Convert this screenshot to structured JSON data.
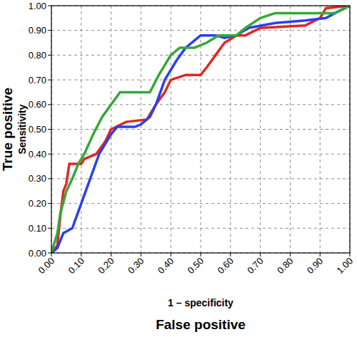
{
  "chart_data": {
    "type": "line",
    "xlabel": "1 – specificity",
    "ylabel": "Sensitivity",
    "annotations": [
      {
        "text": "True positive"
      },
      {
        "text": "False positive"
      }
    ],
    "xlim": [
      0,
      1
    ],
    "ylim": [
      0,
      1
    ],
    "xticks": [
      {
        "value": 0,
        "label": "0.00"
      },
      {
        "value": 0.1,
        "label": "0.10"
      },
      {
        "value": 0.2,
        "label": "0.20"
      },
      {
        "value": 0.3,
        "label": "0.30"
      },
      {
        "value": 0.4,
        "label": "0.40"
      },
      {
        "value": 0.5,
        "label": "0.50"
      },
      {
        "value": 0.6,
        "label": "0.60"
      },
      {
        "value": 0.7,
        "label": "0.70"
      },
      {
        "value": 0.8,
        "label": "0.80"
      },
      {
        "value": 0.9,
        "label": "0.90"
      },
      {
        "value": 1,
        "label": "1.00"
      }
    ],
    "yticks": [
      {
        "value": 0,
        "label": "0.00"
      },
      {
        "value": 0.1,
        "label": "0.10"
      },
      {
        "value": 0.2,
        "label": "0.20"
      },
      {
        "value": 0.3,
        "label": "0.30"
      },
      {
        "value": 0.4,
        "label": "0.40"
      },
      {
        "value": 0.5,
        "label": "0.50"
      },
      {
        "value": 0.6,
        "label": "0.60"
      },
      {
        "value": 0.7,
        "label": "0.70"
      },
      {
        "value": 0.8,
        "label": "0.80"
      },
      {
        "value": 0.9,
        "label": "0.90"
      },
      {
        "value": 1,
        "label": "1.00"
      }
    ],
    "grid": true,
    "series": [
      {
        "color": "#e3261f",
        "x": [
          0,
          0.02,
          0.03,
          0.04,
          0.05,
          0.06,
          0.1,
          0.11,
          0.15,
          0.18,
          0.2,
          0.25,
          0.32,
          0.35,
          0.38,
          0.4,
          0.45,
          0.5,
          0.52,
          0.55,
          0.58,
          0.62,
          0.65,
          0.7,
          0.85,
          0.9,
          0.92,
          1
        ],
        "values": [
          0,
          0.03,
          0.15,
          0.25,
          0.28,
          0.36,
          0.36,
          0.38,
          0.4,
          0.45,
          0.5,
          0.53,
          0.54,
          0.6,
          0.65,
          0.7,
          0.72,
          0.72,
          0.75,
          0.8,
          0.85,
          0.88,
          0.88,
          0.91,
          0.92,
          0.95,
          0.99,
          1
        ]
      },
      {
        "color": "#2b3ff0",
        "x": [
          0,
          0.02,
          0.04,
          0.07,
          0.1,
          0.13,
          0.16,
          0.2,
          0.22,
          0.28,
          0.3,
          0.33,
          0.35,
          0.38,
          0.42,
          0.45,
          0.48,
          0.5,
          0.55,
          0.58,
          0.62,
          0.66,
          0.75,
          0.85,
          0.92,
          0.95,
          1
        ],
        "values": [
          0,
          0.02,
          0.08,
          0.1,
          0.2,
          0.3,
          0.4,
          0.48,
          0.51,
          0.51,
          0.52,
          0.55,
          0.6,
          0.7,
          0.78,
          0.83,
          0.86,
          0.88,
          0.88,
          0.87,
          0.88,
          0.91,
          0.93,
          0.94,
          0.95,
          0.97,
          1
        ]
      },
      {
        "color": "#34a83a",
        "x": [
          0,
          0.02,
          0.03,
          0.05,
          0.07,
          0.09,
          0.11,
          0.14,
          0.17,
          0.2,
          0.23,
          0.33,
          0.36,
          0.4,
          0.43,
          0.48,
          0.52,
          0.56,
          0.62,
          0.65,
          0.7,
          0.75,
          0.95,
          1
        ],
        "values": [
          0,
          0.08,
          0.16,
          0.25,
          0.3,
          0.36,
          0.4,
          0.48,
          0.55,
          0.6,
          0.65,
          0.65,
          0.72,
          0.8,
          0.83,
          0.83,
          0.85,
          0.88,
          0.88,
          0.91,
          0.95,
          0.97,
          0.97,
          1
        ]
      }
    ]
  }
}
